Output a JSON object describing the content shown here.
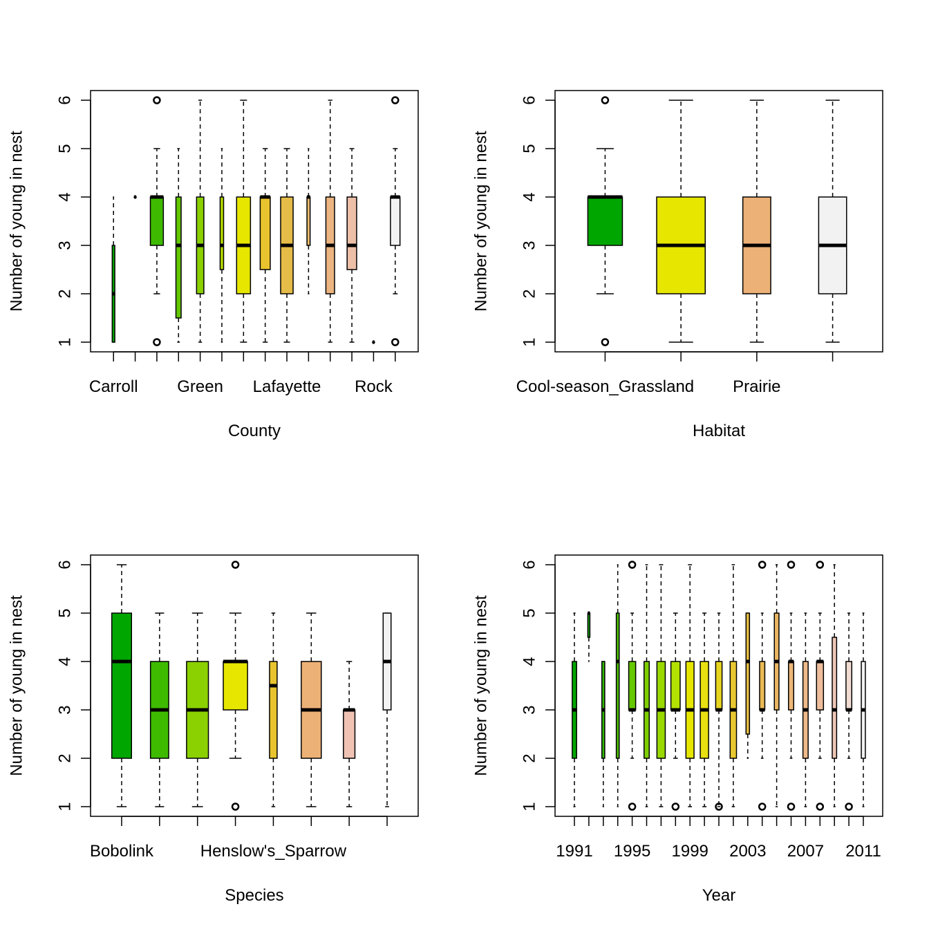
{
  "chart_data": [
    {
      "type": "boxplot",
      "xlabel": "County",
      "ylabel": "Number of young in nest",
      "ylim": [
        1,
        6
      ],
      "yticks": [
        1,
        2,
        3,
        4,
        5,
        6
      ],
      "tick_labels": [
        "Carroll",
        "",
        "",
        "",
        "Green",
        "",
        "",
        "",
        "Lafayette",
        "",
        "",
        "",
        "Rock",
        ""
      ],
      "label_positions": [
        0,
        4,
        8,
        12
      ],
      "label_text": [
        "Carroll",
        "Green",
        "Lafayette",
        "Rock"
      ],
      "boxes": [
        {
          "color": "#00A600",
          "q1": 1,
          "med": 2,
          "q3": 3,
          "lo": 1,
          "hi": 4,
          "width": 0.15,
          "out": []
        },
        {
          "color": "#00A600",
          "q1": 4,
          "med": 4,
          "q3": 4,
          "lo": 4,
          "hi": 4,
          "width": 0.05,
          "out": []
        },
        {
          "color": "#3EBB00",
          "q1": 3,
          "med": 4,
          "q3": 4,
          "lo": 2,
          "hi": 5,
          "width": 0.75,
          "out": [
            1,
            6
          ]
        },
        {
          "color": "#63C600",
          "q1": 1.5,
          "med": 3,
          "q3": 4,
          "lo": 1,
          "hi": 5,
          "width": 0.3,
          "out": []
        },
        {
          "color": "#8BD000",
          "q1": 2,
          "med": 3,
          "q3": 4,
          "lo": 1,
          "hi": 6,
          "width": 0.42,
          "out": []
        },
        {
          "color": "#B6DB00",
          "q1": 2.5,
          "med": 3,
          "q3": 4,
          "lo": 1,
          "hi": 5,
          "width": 0.2,
          "out": []
        },
        {
          "color": "#E6E600",
          "q1": 2,
          "med": 3,
          "q3": 4,
          "lo": 1,
          "hi": 6,
          "width": 0.8,
          "out": []
        },
        {
          "color": "#E8C32E",
          "q1": 2.5,
          "med": 4,
          "q3": 4,
          "lo": 1,
          "hi": 5,
          "width": 0.58,
          "out": []
        },
        {
          "color": "#E6BC48",
          "q1": 2,
          "med": 3,
          "q3": 4,
          "lo": 1,
          "hi": 5,
          "width": 0.72,
          "out": []
        },
        {
          "color": "#E9BD6F",
          "q1": 3,
          "med": 4,
          "q3": 4,
          "lo": 2,
          "hi": 5,
          "width": 0.18,
          "out": []
        },
        {
          "color": "#EBB480",
          "q1": 2,
          "med": 3,
          "q3": 4,
          "lo": 1,
          "hi": 6,
          "width": 0.5,
          "out": []
        },
        {
          "color": "#EDBFA7",
          "q1": 2.5,
          "med": 3,
          "q3": 4,
          "lo": 1,
          "hi": 5,
          "width": 0.55,
          "out": []
        },
        {
          "color": "#EDC9BA",
          "q1": 1,
          "med": 1,
          "q3": 1,
          "lo": 1,
          "hi": 1,
          "width": 0.05,
          "out": []
        },
        {
          "color": "#F2F2F2",
          "q1": 3,
          "med": 4,
          "q3": 4,
          "lo": 2,
          "hi": 5,
          "width": 0.55,
          "out": [
            1,
            6
          ]
        }
      ]
    },
    {
      "type": "boxplot",
      "xlabel": "Habitat",
      "ylabel": "Number of young in nest",
      "ylim": [
        1,
        6
      ],
      "yticks": [
        1,
        2,
        3,
        4,
        5,
        6
      ],
      "label_positions": [
        0,
        2
      ],
      "label_text": [
        "Cool-season_Grassland",
        "Prairie"
      ],
      "boxes": [
        {
          "color": "#00A600",
          "q1": 3,
          "med": 4,
          "q3": 4,
          "lo": 2,
          "hi": 5,
          "width": 0.57,
          "out": [
            1,
            6
          ]
        },
        {
          "color": "#E6E600",
          "q1": 2,
          "med": 3,
          "q3": 4,
          "lo": 1,
          "hi": 6,
          "width": 0.8,
          "out": []
        },
        {
          "color": "#ECB176",
          "q1": 2,
          "med": 3,
          "q3": 4,
          "lo": 1,
          "hi": 6,
          "width": 0.46,
          "out": []
        },
        {
          "color": "#F2F2F2",
          "q1": 2,
          "med": 3,
          "q3": 4,
          "lo": 1,
          "hi": 6,
          "width": 0.46,
          "out": []
        }
      ]
    },
    {
      "type": "boxplot",
      "xlabel": "Species",
      "ylabel": "Number of young in nest",
      "ylim": [
        1,
        6
      ],
      "yticks": [
        1,
        2,
        3,
        4,
        5,
        6
      ],
      "label_positions": [
        0,
        4
      ],
      "label_text": [
        "Bobolink",
        "Henslow's_Sparrow"
      ],
      "boxes": [
        {
          "color": "#00A600",
          "q1": 2,
          "med": 4,
          "q3": 5,
          "lo": 1,
          "hi": 6,
          "width": 0.65,
          "out": []
        },
        {
          "color": "#3EBB00",
          "q1": 2,
          "med": 3,
          "q3": 4,
          "lo": 1,
          "hi": 5,
          "width": 0.6,
          "out": []
        },
        {
          "color": "#8BD000",
          "q1": 2,
          "med": 3,
          "q3": 4,
          "lo": 1,
          "hi": 5,
          "width": 0.72,
          "out": []
        },
        {
          "color": "#E6E600",
          "q1": 3,
          "med": 4,
          "q3": 4,
          "lo": 2,
          "hi": 5,
          "width": 0.8,
          "out": [
            1,
            6
          ]
        },
        {
          "color": "#E8C32E",
          "q1": 2,
          "med": 3.5,
          "q3": 4,
          "lo": 1,
          "hi": 5,
          "width": 0.25,
          "out": []
        },
        {
          "color": "#ECB176",
          "q1": 2,
          "med": 3,
          "q3": 4,
          "lo": 1,
          "hi": 5,
          "width": 0.66,
          "out": []
        },
        {
          "color": "#EFC2B3",
          "q1": 2,
          "med": 3,
          "q3": 3,
          "lo": 1,
          "hi": 4,
          "width": 0.38,
          "out": []
        },
        {
          "color": "#F2F2F2",
          "q1": 3,
          "med": 4,
          "q3": 5,
          "lo": 1,
          "hi": 5,
          "width": 0.26,
          "out": []
        }
      ]
    },
    {
      "type": "boxplot",
      "xlabel": "Year",
      "ylabel": "Number of young in nest",
      "ylim": [
        1,
        6
      ],
      "yticks": [
        1,
        2,
        3,
        4,
        5,
        6
      ],
      "label_positions": [
        0,
        4,
        8,
        12,
        16,
        20
      ],
      "label_text": [
        "1991",
        "1995",
        "1999",
        "2003",
        "2007",
        "2011"
      ],
      "boxes": [
        {
          "color": "#00A600",
          "q1": 2,
          "med": 3,
          "q3": 4,
          "lo": 1,
          "hi": 5,
          "width": 0.38,
          "out": []
        },
        {
          "color": "#1AAE00",
          "q1": 4.5,
          "med": 5,
          "q3": 5,
          "lo": 4,
          "hi": 5,
          "width": 0.15,
          "out": []
        },
        {
          "color": "#33B700",
          "q1": 2,
          "med": 3,
          "q3": 4,
          "lo": 1,
          "hi": 4,
          "width": 0.25,
          "out": []
        },
        {
          "color": "#4DBF00",
          "q1": 2,
          "med": 4,
          "q3": 5,
          "lo": 1,
          "hi": 6,
          "width": 0.25,
          "out": []
        },
        {
          "color": "#66C800",
          "q1": 3,
          "med": 3,
          "q3": 4,
          "lo": 2,
          "hi": 5,
          "width": 0.6,
          "out": [
            1,
            6
          ]
        },
        {
          "color": "#80D000",
          "q1": 2,
          "med": 3,
          "q3": 4,
          "lo": 1,
          "hi": 6,
          "width": 0.45,
          "out": []
        },
        {
          "color": "#99D900",
          "q1": 2,
          "med": 3,
          "q3": 4,
          "lo": 1,
          "hi": 6,
          "width": 0.72,
          "out": []
        },
        {
          "color": "#B3E100",
          "q1": 3,
          "med": 3,
          "q3": 4,
          "lo": 2,
          "hi": 5,
          "width": 0.8,
          "out": [
            1
          ]
        },
        {
          "color": "#E6E600",
          "q1": 2,
          "med": 3,
          "q3": 4,
          "lo": 1,
          "hi": 6,
          "width": 0.7,
          "out": []
        },
        {
          "color": "#E8E010",
          "q1": 2,
          "med": 3,
          "q3": 4,
          "lo": 1,
          "hi": 5,
          "width": 0.72,
          "out": []
        },
        {
          "color": "#E8D520",
          "q1": 3,
          "med": 3,
          "q3": 4,
          "lo": 1,
          "hi": 5,
          "width": 0.55,
          "out": [
            1
          ]
        },
        {
          "color": "#E8C830",
          "q1": 2,
          "med": 3,
          "q3": 4,
          "lo": 1,
          "hi": 6,
          "width": 0.55,
          "out": []
        },
        {
          "color": "#E8BE40",
          "q1": 2.5,
          "med": 4,
          "q3": 5,
          "lo": 2,
          "hi": 5,
          "width": 0.3,
          "out": []
        },
        {
          "color": "#E9BA55",
          "q1": 3,
          "med": 3,
          "q3": 4,
          "lo": 2,
          "hi": 5,
          "width": 0.45,
          "out": [
            1,
            6
          ]
        },
        {
          "color": "#EBB765",
          "q1": 3,
          "med": 4,
          "q3": 5,
          "lo": 1,
          "hi": 6,
          "width": 0.4,
          "out": []
        },
        {
          "color": "#ECB778",
          "q1": 3,
          "med": 4,
          "q3": 4,
          "lo": 2,
          "hi": 5,
          "width": 0.45,
          "out": [
            1,
            6
          ]
        },
        {
          "color": "#EDBA8A",
          "q1": 2,
          "med": 3,
          "q3": 4,
          "lo": 1,
          "hi": 5,
          "width": 0.45,
          "out": []
        },
        {
          "color": "#EEBE9C",
          "q1": 3,
          "med": 4,
          "q3": 4,
          "lo": 2,
          "hi": 5,
          "width": 0.6,
          "out": [
            1,
            6
          ]
        },
        {
          "color": "#EFC6B6",
          "q1": 2,
          "med": 3,
          "q3": 4.5,
          "lo": 1,
          "hi": 6,
          "width": 0.38,
          "out": []
        },
        {
          "color": "#F0DCD2",
          "q1": 3,
          "med": 3,
          "q3": 4,
          "lo": 2,
          "hi": 5,
          "width": 0.5,
          "out": [
            1
          ]
        },
        {
          "color": "#F2F2F2",
          "q1": 2,
          "med": 3,
          "q3": 4,
          "lo": 1,
          "hi": 5,
          "width": 0.35,
          "out": []
        }
      ]
    }
  ]
}
